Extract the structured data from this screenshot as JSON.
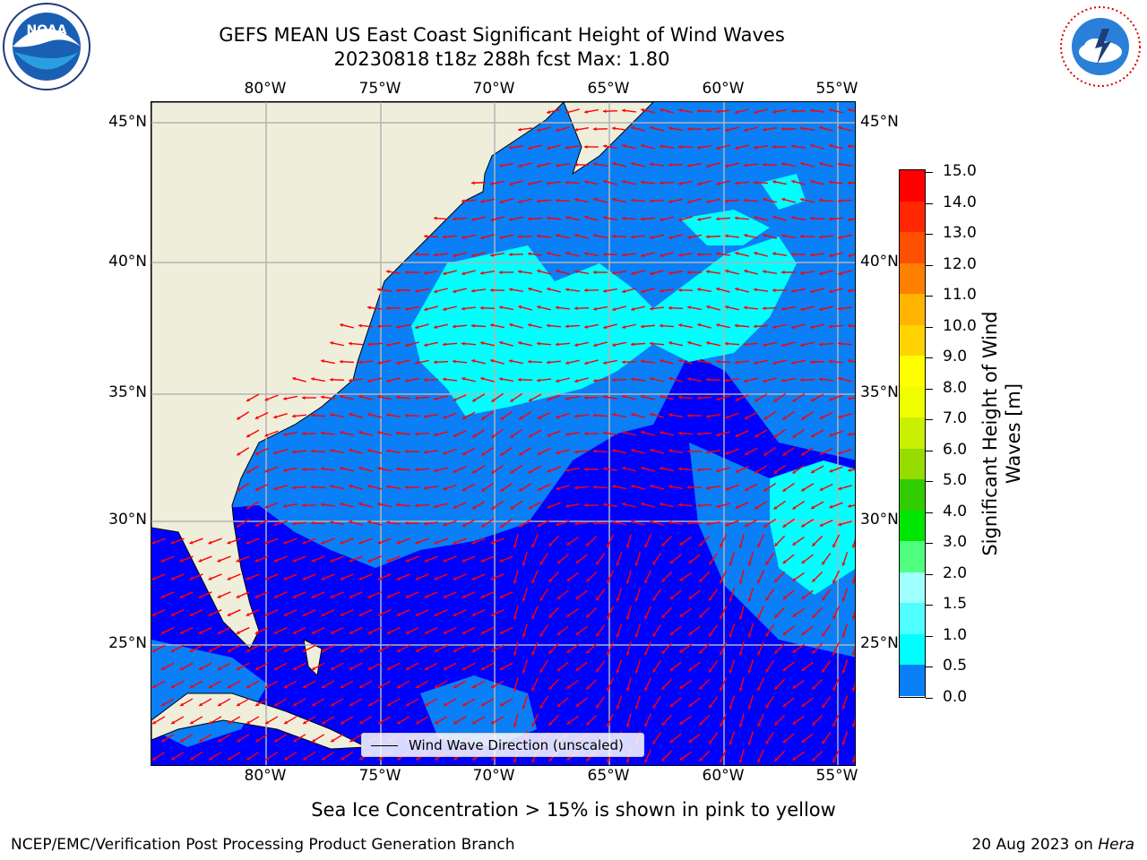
{
  "header": {
    "title_line1": "GEFS MEAN US East Coast Significant Height of Wind Waves",
    "title_line2": "20230818 t18z 288h fcst   Max: 1.80"
  },
  "map": {
    "lon_labels": [
      "80°W",
      "75°W",
      "70°W",
      "65°W",
      "60°W",
      "55°W"
    ],
    "lat_labels": [
      "45°N",
      "40°N",
      "35°N",
      "30°N",
      "25°N"
    ],
    "colors": {
      "land": "#efeedb",
      "water_0_05": "#0000ff",
      "water_05_10": "#0a7ff6",
      "water_10_15": "#00ffff",
      "arrow": "#ff0000",
      "grid": "#b4b4b4"
    }
  },
  "legend": {
    "label": "Wind Wave Direction (unscaled)"
  },
  "colorbar": {
    "title": "Significant Height of Wind Waves [m]",
    "ticks": [
      "0.0",
      "0.5",
      "1.0",
      "1.5",
      "2.0",
      "3.0",
      "4.0",
      "5.0",
      "6.0",
      "7.0",
      "8.0",
      "9.0",
      "10.0",
      "11.0",
      "12.0",
      "13.0",
      "14.0",
      "15.0"
    ],
    "colors": [
      "#0000ff",
      "#0a7ff6",
      "#00ffff",
      "#50ffff",
      "#a0ffff",
      "#50ff7f",
      "#00e600",
      "#32cd00",
      "#96dc00",
      "#c8f000",
      "#f0ff00",
      "#ffff00",
      "#ffd200",
      "#ffb400",
      "#ff8000",
      "#ff5000",
      "#ff2800",
      "#ff0000"
    ]
  },
  "footer": {
    "sea_ice_note": "Sea Ice Concentration > 15% is shown in pink to yellow",
    "branch": "NCEP/EMC/Verification Post Processing Product Generation Branch",
    "date": "20 Aug 2023 on",
    "host": "Hera"
  },
  "logos": {
    "left": "NOAA",
    "right": "NATIONAL WEATHER SERVICE"
  }
}
